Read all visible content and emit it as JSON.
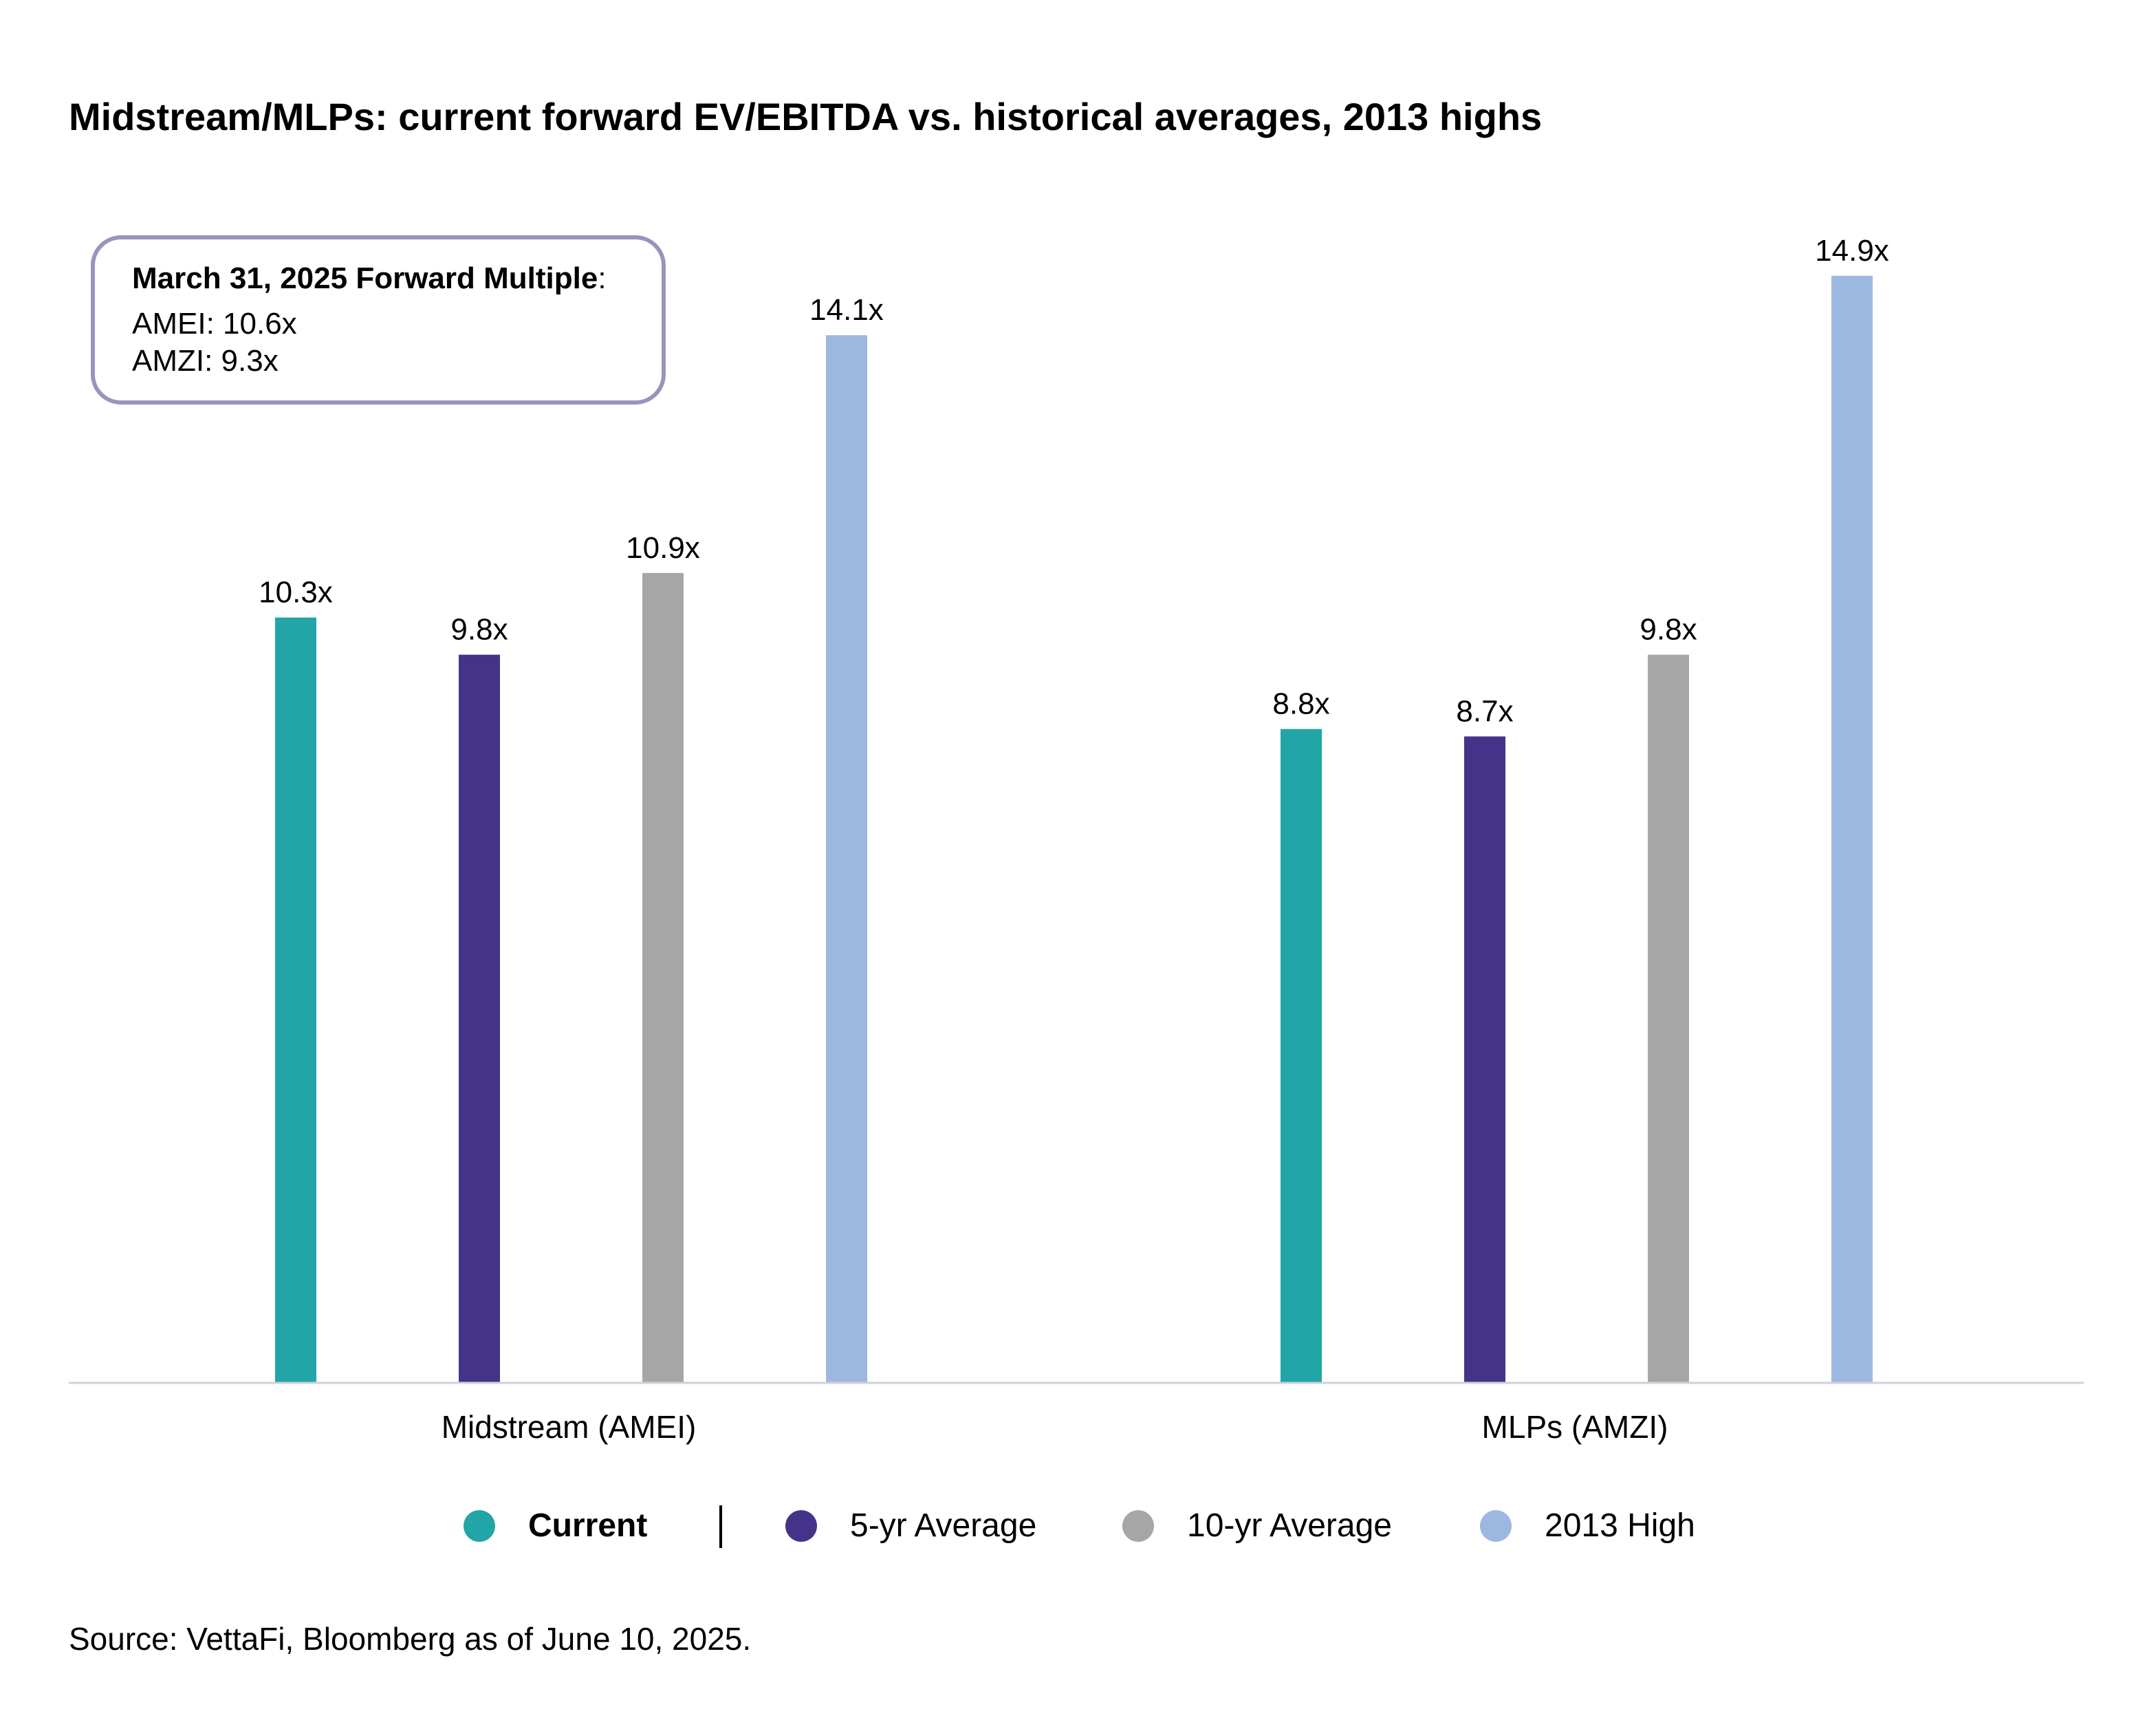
{
  "chart_data": {
    "type": "bar",
    "title": "Midstream/MLPs: current forward EV/EBITDA vs. historical averages, 2013 highs",
    "categories": [
      "Midstream (AMEI)",
      "MLPs (AMZI)"
    ],
    "series": [
      {
        "name": "Current",
        "values": [
          10.3,
          8.8
        ],
        "labels": [
          "10.3x",
          "8.8x"
        ],
        "color": "#21a5a6"
      },
      {
        "name": "5-yr Average",
        "values": [
          9.8,
          8.7
        ],
        "labels": [
          "9.8x",
          "8.7x"
        ],
        "color": "#45338a"
      },
      {
        "name": "10-yr Average",
        "values": [
          10.9,
          9.8
        ],
        "labels": [
          "10.9x",
          "9.8x"
        ],
        "color": "#a6a6a6"
      },
      {
        "name": "2013 High",
        "values": [
          14.1,
          14.9
        ],
        "labels": [
          "14.1x",
          "14.9x"
        ],
        "color": "#9db8e0"
      }
    ],
    "ylim": [
      0,
      16
    ],
    "grid": false,
    "legend_position": "bottom",
    "xlabel": "",
    "ylabel": "",
    "axis_color": "#d0d0dc"
  },
  "callout": {
    "heading": "March 31, 2025 Forward Multiple",
    "heading_suffix": ":",
    "lines": [
      "AMEI: 10.6x",
      "AMZI: 9.3x"
    ],
    "border_color": "#9a93bf"
  },
  "source": "Source: VettaFi, Bloomberg as of June 10, 2025."
}
